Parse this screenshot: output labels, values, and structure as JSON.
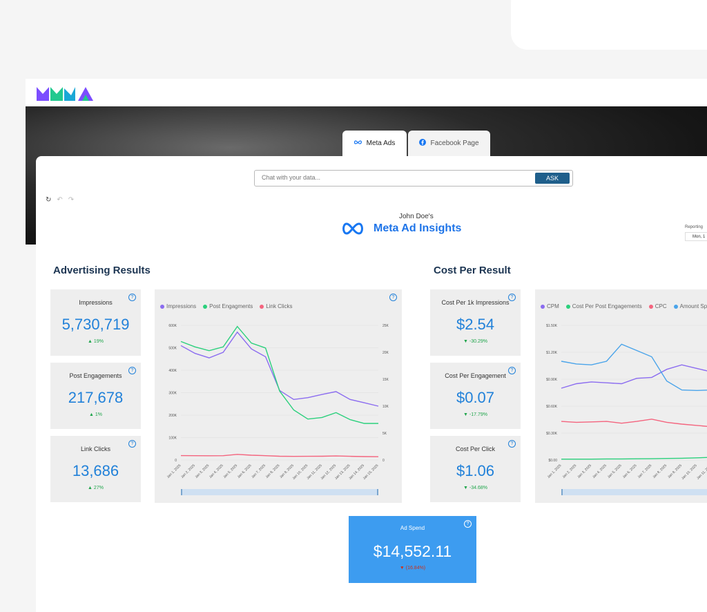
{
  "brand": {
    "logo_text": "MMAA"
  },
  "tabs": [
    {
      "label": "Meta Ads",
      "icon": "meta-infinity-icon"
    },
    {
      "label": "Facebook Page",
      "icon": "facebook-icon"
    }
  ],
  "chat": {
    "placeholder": "Chat with your data...",
    "ask_label": "ASK"
  },
  "header": {
    "subtitle": "John Doe's",
    "title": "Meta Ad Insights",
    "reporting_label": "Reporting",
    "date_value": "Mon, 1"
  },
  "sections": {
    "advertising": "Advertising Results",
    "cost": "Cost Per Result"
  },
  "kpis_left": [
    {
      "label": "Impressions",
      "value": "5,730,719",
      "change": "19%",
      "direction": "up"
    },
    {
      "label": "Post Engagements",
      "value": "217,678",
      "change": "1%",
      "direction": "up"
    },
    {
      "label": "Link Clicks",
      "value": "13,686",
      "change": "27%",
      "direction": "up"
    }
  ],
  "kpis_right": [
    {
      "label": "Cost Per 1k Impressions",
      "value": "$2.54",
      "change": "-30.29%",
      "direction": "down"
    },
    {
      "label": "Cost Per Engagement",
      "value": "$0.07",
      "change": "-17.79%",
      "direction": "down"
    },
    {
      "label": "Cost Per Click",
      "value": "$1.06",
      "change": "-34.68%",
      "direction": "down"
    }
  ],
  "ad_spend": {
    "label": "Ad Spend",
    "value": "$14,552.11",
    "change": "(16.84%)",
    "direction": "down"
  },
  "colors": {
    "purple": "#8b6cf0",
    "green": "#2ad07c",
    "pink": "#f4647e",
    "blue": "#4aa4ea",
    "accent": "#2181d9",
    "navy": "#1c3552"
  },
  "chart_data": [
    {
      "type": "line",
      "legend": [
        "Impressions",
        "Post Engagments",
        "Link Clicks"
      ],
      "x": [
        "Jan 1, 2025",
        "Jan 2, 2025",
        "Jan 3, 2025",
        "Jan 4, 2025",
        "Jan 5, 2025",
        "Jan 6, 2025",
        "Jan 7, 2025",
        "Jan 8, 2025",
        "Jan 9, 2025",
        "Jan 10, 2025",
        "Jan 11, 2025",
        "Jan 12, 2025",
        "Jan 13, 2025",
        "Jan 14, 2025",
        "Jan 15, 2025"
      ],
      "y_left_ticks": [
        "0",
        "100K",
        "200K",
        "300K",
        "400K",
        "500K",
        "600K"
      ],
      "y_right_ticks": [
        "0",
        "5K",
        "10K",
        "15K",
        "20K",
        "25K"
      ],
      "ylim_left": [
        0,
        600000
      ],
      "ylim_right": [
        0,
        25000
      ],
      "series": [
        {
          "name": "Impressions",
          "axis": "left",
          "values": [
            510000,
            475000,
            455000,
            480000,
            570000,
            495000,
            460000,
            310000,
            270000,
            278000,
            292000,
            305000,
            270000,
            255000,
            240000
          ]
        },
        {
          "name": "Post Engagments",
          "axis": "right",
          "values": [
            22000,
            21000,
            20300,
            21000,
            24800,
            21700,
            20800,
            12800,
            9300,
            7600,
            7900,
            8800,
            7500,
            6800,
            6800
          ]
        },
        {
          "name": "Link Clicks",
          "axis": "right",
          "values": [
            820,
            810,
            790,
            810,
            1050,
            900,
            810,
            700,
            680,
            690,
            700,
            760,
            690,
            640,
            620
          ]
        }
      ]
    },
    {
      "type": "line",
      "legend": [
        "CPM",
        "Cost Per Post Engagements",
        "CPC",
        "Amount Sp"
      ],
      "x": [
        "Jan 1, 2025",
        "Jan 2, 2025",
        "Jan 3, 2025",
        "Jan 4, 2025",
        "Jan 5, 2025",
        "Jan 6, 2025",
        "Jan 7, 2025",
        "Jan 8, 2025",
        "Jan 9, 2025",
        "Jan 10, 2025",
        "Jan 11, 2025",
        "Jan 12, 2025"
      ],
      "y_ticks": [
        "$0.00",
        "$0.30K",
        "$0.60K",
        "$0.90K",
        "$1.20K",
        "$1.50K"
      ],
      "ylim": [
        0,
        1500
      ],
      "series": [
        {
          "name": "CPM",
          "values": [
            800,
            850,
            870,
            860,
            850,
            910,
            920,
            1010,
            1060,
            1020,
            980,
            1000
          ]
        },
        {
          "name": "Cost Per Post Engagements",
          "values": [
            10,
            10,
            10,
            12,
            12,
            14,
            15,
            18,
            20,
            25,
            30,
            32
          ]
        },
        {
          "name": "CPC",
          "values": [
            430,
            420,
            425,
            430,
            410,
            430,
            455,
            420,
            400,
            385,
            370,
            365
          ]
        },
        {
          "name": "Amount Sp",
          "values": [
            1100,
            1070,
            1060,
            1100,
            1290,
            1220,
            1150,
            880,
            780,
            775,
            780,
            790
          ]
        }
      ]
    }
  ]
}
